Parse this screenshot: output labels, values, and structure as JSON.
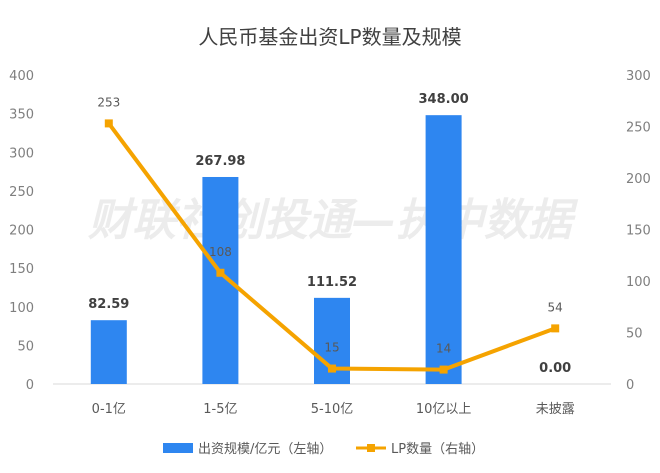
{
  "chart_data": {
    "type": "bar",
    "title": "人民币基金出资LP数量及规模",
    "categories": [
      "0-1亿",
      "1-5亿",
      "5-10亿",
      "10亿以上",
      "未披露"
    ],
    "series": [
      {
        "name": "出资规模/亿元（左轴）",
        "type": "bar",
        "axis": "left",
        "color": "#2E86F0",
        "values": [
          82.59,
          267.98,
          111.52,
          348.0,
          0.0
        ],
        "labels": [
          "82.59",
          "267.98",
          "111.52",
          "348.00",
          "0.00"
        ]
      },
      {
        "name": "LP数量（右轴）",
        "type": "line",
        "axis": "right",
        "color": "#F5A300",
        "values": [
          253,
          108,
          15,
          14,
          54
        ],
        "labels": [
          "253",
          "108",
          "15",
          "14",
          "54"
        ]
      }
    ],
    "y_left": {
      "min": 0,
      "max": 400,
      "ticks": [
        "0",
        "50",
        "100",
        "150",
        "200",
        "250",
        "300",
        "350",
        "400"
      ]
    },
    "y_right": {
      "min": 0,
      "max": 300,
      "ticks": [
        "0",
        "50",
        "100",
        "150",
        "200",
        "250",
        "300"
      ]
    },
    "grid": false,
    "legend_position": "bottom",
    "watermark": "财联社创投通—执中数据"
  }
}
